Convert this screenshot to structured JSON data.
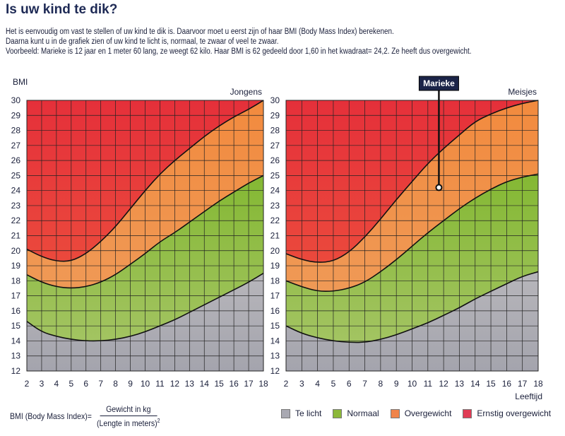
{
  "title": "Is uw kind te dik?",
  "intro": [
    "Het is eenvoudig om vast te stellen of uw kind te dik is. Daarvoor moet u eerst zijn of haar BMI (Body Mass Index) berekenen.",
    "Daarna kunt u in de grafiek zien of uw kind te licht is, normaal, te zwaar of veel te zwaar.",
    "Voorbeeld: Marieke is 12 jaar en 1 meter 60 lang, ze weegt 62 kilo. Haar BMI is 62 gedeeld door 1,60 in het kwadraat= 24,2. Ze heeft dus overgewicht."
  ],
  "formula": {
    "lhs": "BMI (Body Mass Index)=",
    "numerator": "Gewicht in kg",
    "denominator": "(Lengte in meters)",
    "exponent": "2"
  },
  "legend": [
    {
      "label": "Te licht",
      "color": "#a9a9b2"
    },
    {
      "label": "Normaal",
      "color": "#8cb83a"
    },
    {
      "label": "Overgewicht",
      "color": "#f0844a"
    },
    {
      "label": "Ernstig overgewicht",
      "color": "#e03c55"
    }
  ],
  "chart_data": [
    {
      "type": "area",
      "title": "Jongens",
      "ylabel": "BMI",
      "xlabel": "",
      "xlim": [
        2,
        18
      ],
      "ylim": [
        12,
        30
      ],
      "grid": true,
      "x": [
        2,
        3,
        4,
        5,
        6,
        7,
        8,
        9,
        10,
        11,
        12,
        13,
        14,
        15,
        16,
        17,
        18
      ],
      "yticks": [
        12,
        13,
        14,
        15,
        16,
        17,
        18,
        19,
        20,
        21,
        22,
        23,
        24,
        25,
        26,
        27,
        28,
        29,
        30
      ],
      "boundaries": [
        {
          "between": "Te licht / Normaal",
          "values": [
            15.3,
            14.6,
            14.3,
            14.1,
            14.0,
            14.0,
            14.1,
            14.3,
            14.6,
            15.0,
            15.4,
            15.9,
            16.4,
            16.9,
            17.4,
            17.9,
            18.5
          ]
        },
        {
          "between": "Normaal / Overgewicht",
          "values": [
            18.4,
            17.9,
            17.6,
            17.5,
            17.6,
            17.9,
            18.4,
            19.1,
            19.8,
            20.6,
            21.2,
            21.9,
            22.6,
            23.3,
            23.9,
            24.5,
            25.0
          ]
        },
        {
          "between": "Overgewicht / Ernstig overgewicht",
          "values": [
            20.1,
            19.6,
            19.3,
            19.3,
            19.8,
            20.6,
            21.6,
            22.8,
            24.0,
            25.1,
            26.0,
            26.8,
            27.6,
            28.3,
            28.9,
            29.4,
            30.0
          ]
        }
      ]
    },
    {
      "type": "area",
      "title": "Meisjes",
      "ylabel": "",
      "xlabel": "Leeftijd",
      "xlim": [
        2,
        18
      ],
      "ylim": [
        12,
        30
      ],
      "grid": true,
      "x": [
        2,
        3,
        4,
        5,
        6,
        7,
        8,
        9,
        10,
        11,
        12,
        13,
        14,
        15,
        16,
        17,
        18
      ],
      "yticks": [
        12,
        13,
        14,
        15,
        16,
        17,
        18,
        19,
        20,
        21,
        22,
        23,
        24,
        25,
        26,
        27,
        28,
        29,
        30
      ],
      "boundaries": [
        {
          "between": "Te licht / Normaal",
          "values": [
            15.0,
            14.5,
            14.2,
            14.0,
            13.9,
            13.9,
            14.1,
            14.4,
            14.8,
            15.2,
            15.7,
            16.2,
            16.8,
            17.3,
            17.8,
            18.3,
            18.6
          ]
        },
        {
          "between": "Normaal / Overgewicht",
          "values": [
            18.0,
            17.6,
            17.3,
            17.3,
            17.5,
            17.9,
            18.6,
            19.4,
            20.3,
            21.2,
            22.0,
            22.8,
            23.5,
            24.1,
            24.6,
            24.9,
            25.1
          ]
        },
        {
          "between": "Overgewicht / Ernstig overgewicht",
          "values": [
            19.8,
            19.4,
            19.2,
            19.3,
            19.9,
            20.9,
            22.1,
            23.4,
            24.6,
            25.8,
            26.8,
            27.7,
            28.6,
            29.1,
            29.5,
            29.8,
            30.0
          ]
        }
      ],
      "annotation": {
        "label": "Marieke",
        "x": 11.7,
        "y": 24.2
      }
    }
  ]
}
